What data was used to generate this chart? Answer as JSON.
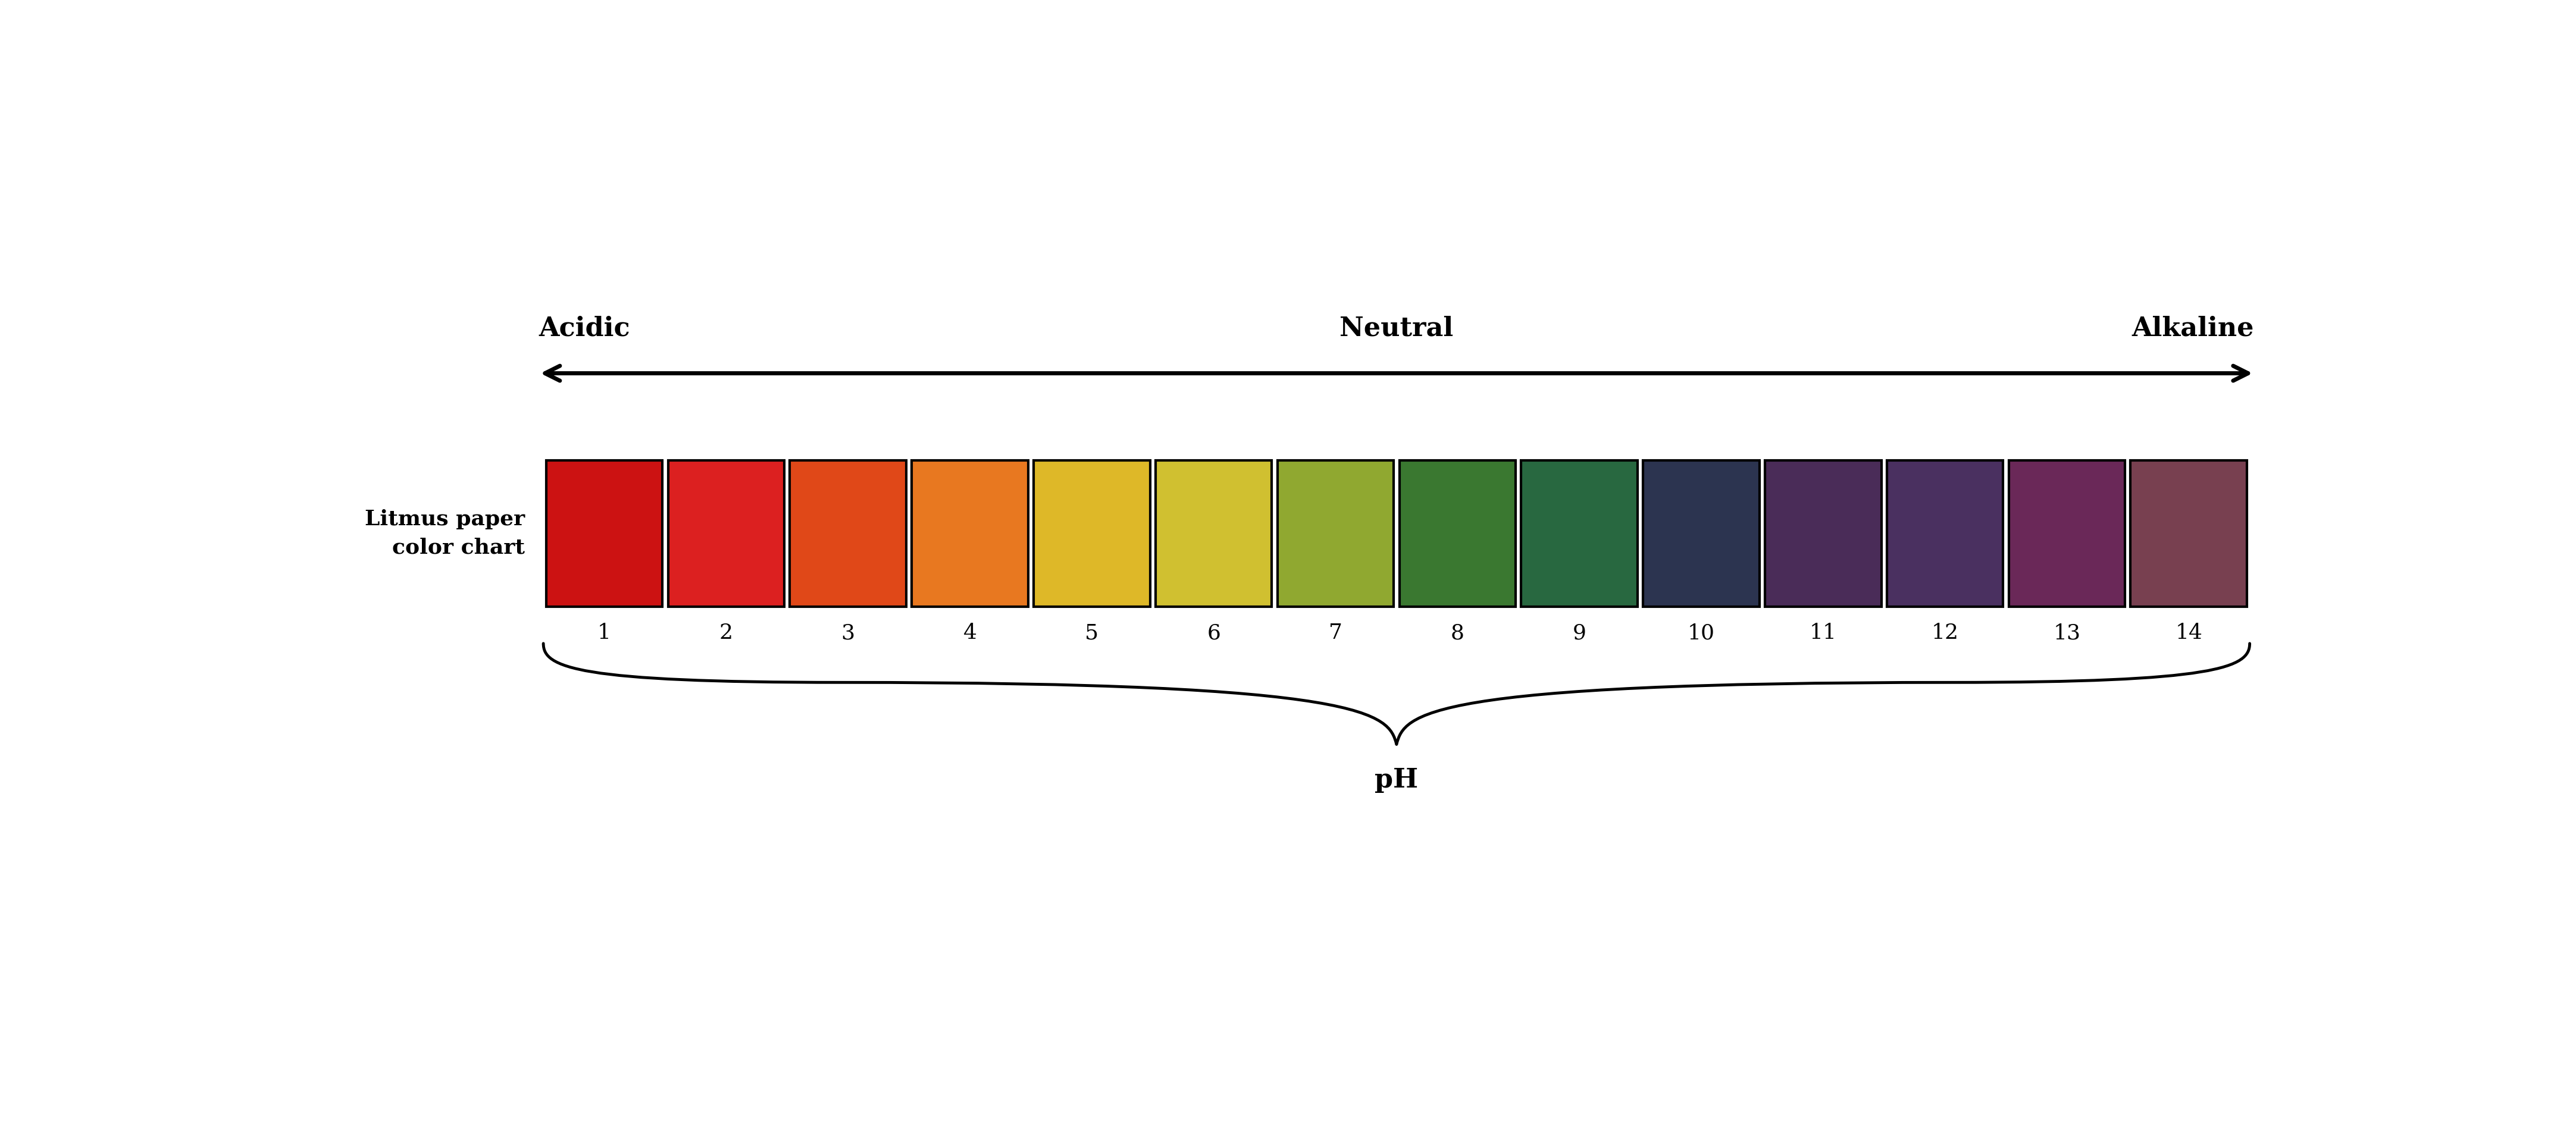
{
  "ph_values": [
    1,
    2,
    3,
    4,
    5,
    6,
    7,
    8,
    9,
    10,
    11,
    12,
    13,
    14
  ],
  "ph_colors": [
    "#CC1212",
    "#DC2020",
    "#E04818",
    "#E87820",
    "#DEB828",
    "#D0C030",
    "#90A830",
    "#3A7830",
    "#286840",
    "#2C3450",
    "#4A2C58",
    "#4A3060",
    "#6A2858",
    "#784050"
  ],
  "label_acidic": "Acidic",
  "label_neutral": "Neutral",
  "label_alkaline": "Alkaline",
  "label_litmus": "Litmus paper\ncolor chart",
  "label_ph": "pH",
  "background_color": "#ffffff",
  "text_color": "#000000",
  "title_fontsize": 32,
  "label_fontsize": 26,
  "number_fontsize": 26
}
